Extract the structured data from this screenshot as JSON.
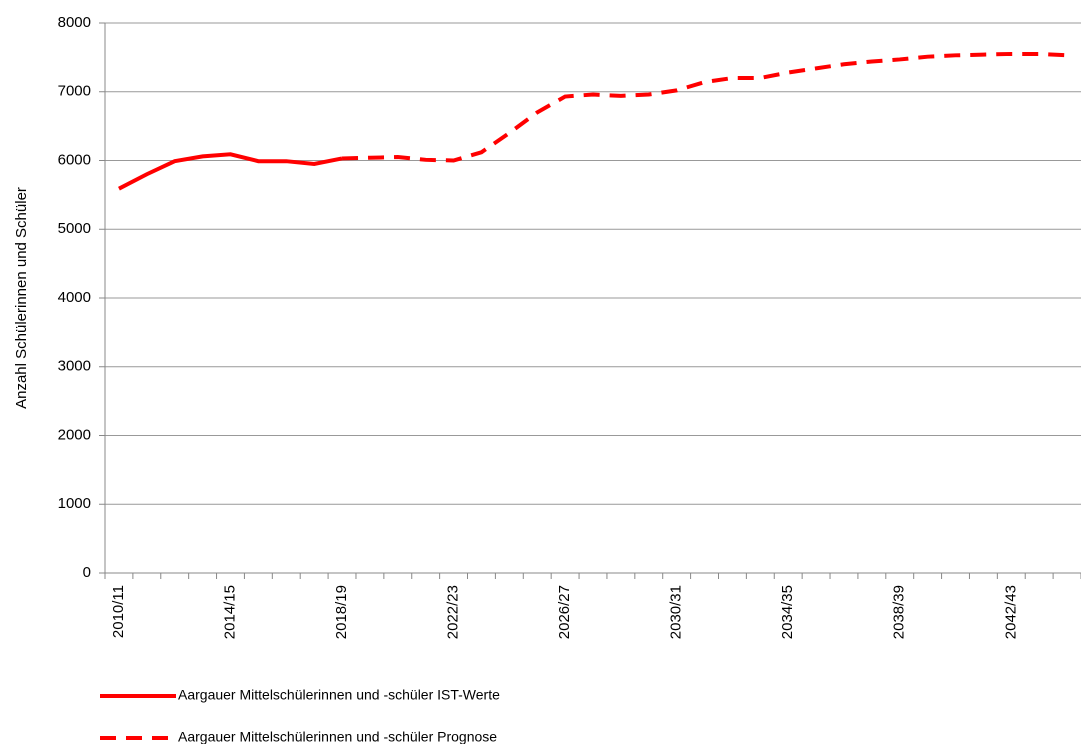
{
  "chart_data": {
    "type": "line",
    "y_label": "Anzahl Schülerinnen und Schüler",
    "categories": [
      "2010/11",
      null,
      null,
      null,
      "2014/15",
      null,
      null,
      null,
      "2018/19",
      null,
      null,
      null,
      "2022/23",
      null,
      null,
      null,
      "2026/27",
      null,
      null,
      null,
      "2030/31",
      null,
      null,
      null,
      "2034/35",
      null,
      null,
      null,
      "2038/39",
      null,
      null,
      null,
      "2042/43",
      null,
      null
    ],
    "series": [
      {
        "name": "Aargauer Mittelschülerinnen und -schüler IST-Werte",
        "color": "#ff0000",
        "dashed": false,
        "values": [
          5590,
          5800,
          5990,
          6060,
          6090,
          5990,
          5990,
          5950,
          6030,
          null,
          null,
          null,
          null,
          null,
          null,
          null,
          null,
          null,
          null,
          null,
          null,
          null,
          null,
          null,
          null,
          null,
          null,
          null,
          null,
          null,
          null,
          null,
          null,
          null,
          null
        ]
      },
      {
        "name": "Aargauer Mittelschülerinnen und -schüler Prognose",
        "color": "#ff0000",
        "dashed": true,
        "values": [
          null,
          null,
          null,
          null,
          null,
          null,
          null,
          null,
          6030,
          6040,
          6050,
          6010,
          6000,
          6120,
          6400,
          6700,
          6930,
          6960,
          6940,
          6960,
          7020,
          7140,
          7200,
          7200,
          7280,
          7340,
          7400,
          7440,
          7470,
          7510,
          7530,
          7540,
          7550,
          7550,
          7530
        ]
      }
    ],
    "ylim": [
      0,
      8000
    ],
    "yticks": [
      0,
      1000,
      2000,
      3000,
      4000,
      5000,
      6000,
      7000,
      8000
    ],
    "grid": true
  }
}
